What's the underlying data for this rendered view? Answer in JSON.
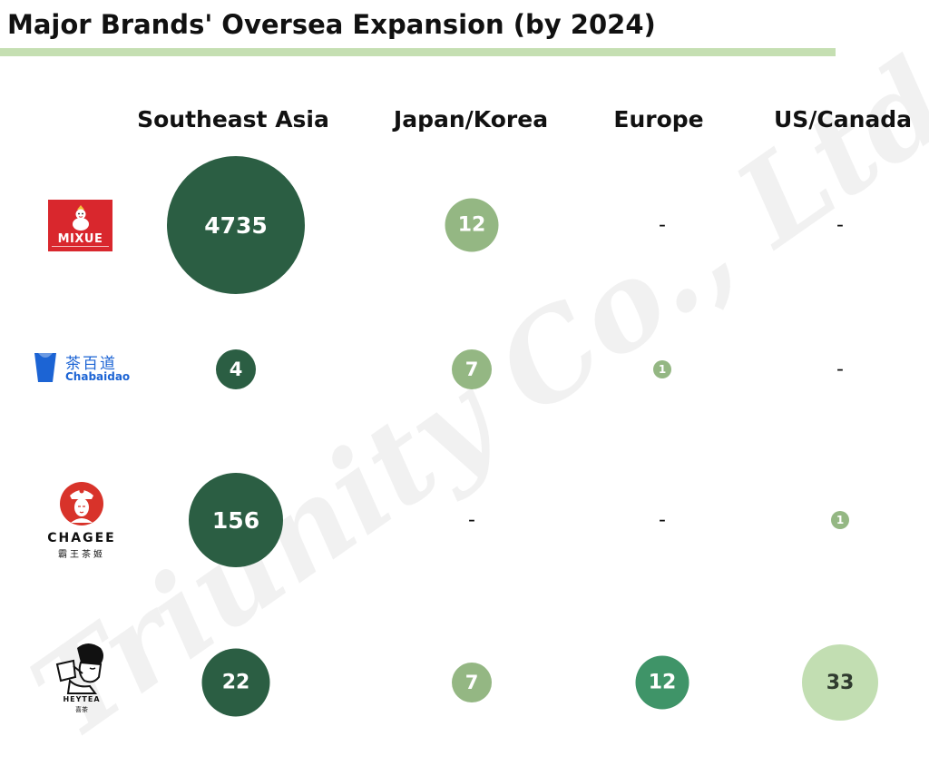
{
  "title": "Major Brands' Oversea Expansion (by 2024)",
  "watermark": "Triunity Co., Ltd",
  "colors": {
    "title_rule": "#c5dfb2",
    "southeast_asia": "#2b5e43",
    "japan_korea": "#94b783",
    "europe_small": "#94b783",
    "europe_heytea": "#3f9468",
    "us_canada_small": "#94b783",
    "us_canada_heytea": "#c2deb2"
  },
  "columns": [
    "Southeast Asia",
    "Japan/Korea",
    "Europe",
    "US/Canada"
  ],
  "brands": [
    {
      "name": "MIXUE",
      "logo_text": "MIXUE"
    },
    {
      "name": "Chabaidao",
      "logo_text_cn": "茶百道",
      "logo_text": "Chabaidao"
    },
    {
      "name": "CHAGEE",
      "logo_text": "CHAGEE",
      "logo_text_cn": "霸王茶姬"
    },
    {
      "name": "HEYTEA",
      "logo_text": "HEYTEA",
      "logo_text_cn": "喜茶"
    }
  ],
  "cells": [
    [
      "4735",
      "12",
      "-",
      "-"
    ],
    [
      "4",
      "7",
      "1",
      "-"
    ],
    [
      "156",
      "-",
      "-",
      "1"
    ],
    [
      "22",
      "7",
      "12",
      "33"
    ]
  ],
  "chart_data": {
    "type": "bubble",
    "title": "Major Brands' Oversea Expansion (by 2024)",
    "categories": [
      "Southeast Asia",
      "Japan/Korea",
      "Europe",
      "US/Canada"
    ],
    "series": [
      {
        "name": "MIXUE",
        "values": [
          4735,
          12,
          null,
          null
        ]
      },
      {
        "name": "Chabaidao",
        "values": [
          4,
          7,
          1,
          null
        ]
      },
      {
        "name": "CHAGEE",
        "values": [
          156,
          null,
          null,
          1
        ]
      },
      {
        "name": "HEYTEA",
        "values": [
          22,
          7,
          12,
          33
        ]
      }
    ],
    "missing_marker": "-"
  }
}
